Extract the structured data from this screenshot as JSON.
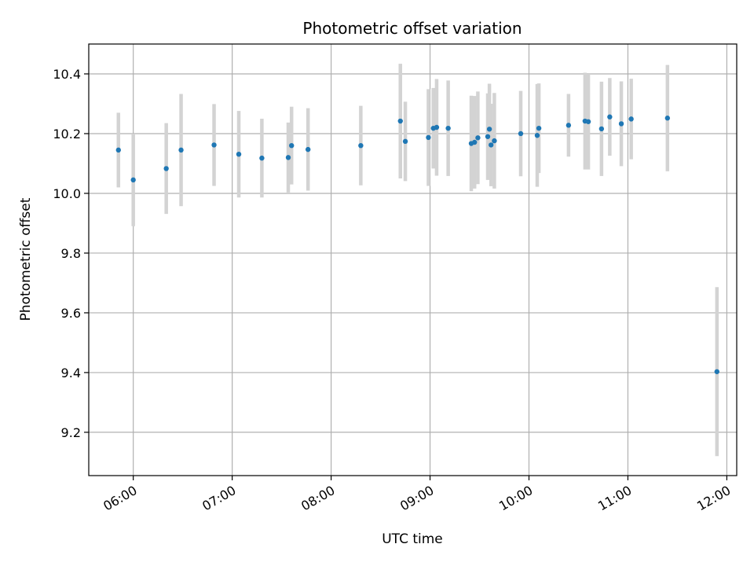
{
  "chart_data": {
    "type": "scatter",
    "title": "Photometric offset variation",
    "xlabel": "UTC time",
    "ylabel": "Photometric offset",
    "xlim": [
      "05:33",
      "12:06"
    ],
    "ylim": [
      9.055,
      10.5
    ],
    "x_ticks": [
      "06:00",
      "07:00",
      "08:00",
      "09:00",
      "10:00",
      "11:00",
      "12:00"
    ],
    "y_ticks": [
      "9.2",
      "9.4",
      "9.6",
      "9.8",
      "10.0",
      "10.2",
      "10.4"
    ],
    "grid": true,
    "colors": {
      "point": "#1f77b4",
      "error_bar": "#d3d3d3",
      "grid": "#b0b0b0"
    },
    "series": [
      {
        "points": [
          {
            "x": "05:51",
            "y": 10.145,
            "yerr": 0.125
          },
          {
            "x": "06:00",
            "y": 10.045,
            "yerr": 0.155
          },
          {
            "x": "06:20",
            "y": 10.083,
            "yerr": 0.152
          },
          {
            "x": "06:29",
            "y": 10.145,
            "yerr": 0.188
          },
          {
            "x": "06:49",
            "y": 10.162,
            "yerr": 0.137
          },
          {
            "x": "07:04",
            "y": 10.131,
            "yerr": 0.145
          },
          {
            "x": "07:18",
            "y": 10.118,
            "yerr": 0.132
          },
          {
            "x": "07:34",
            "y": 10.12,
            "yerr": 0.117
          },
          {
            "x": "07:36",
            "y": 10.16,
            "yerr": 0.13
          },
          {
            "x": "07:46",
            "y": 10.147,
            "yerr": 0.138
          },
          {
            "x": "08:18",
            "y": 10.16,
            "yerr": 0.133
          },
          {
            "x": "08:42",
            "y": 10.242,
            "yerr": 0.192
          },
          {
            "x": "08:45",
            "y": 10.174,
            "yerr": 0.133
          },
          {
            "x": "08:59",
            "y": 10.187,
            "yerr": 0.162
          },
          {
            "x": "09:02",
            "y": 10.218,
            "yerr": 0.135
          },
          {
            "x": "09:04",
            "y": 10.221,
            "yerr": 0.162
          },
          {
            "x": "09:11",
            "y": 10.218,
            "yerr": 0.16
          },
          {
            "x": "09:25",
            "y": 10.167,
            "yerr": 0.16
          },
          {
            "x": "09:27",
            "y": 10.171,
            "yerr": 0.155
          },
          {
            "x": "09:29",
            "y": 10.186,
            "yerr": 0.155
          },
          {
            "x": "09:35",
            "y": 10.19,
            "yerr": 0.145
          },
          {
            "x": "09:36",
            "y": 10.215,
            "yerr": 0.152
          },
          {
            "x": "09:37",
            "y": 10.162,
            "yerr": 0.138
          },
          {
            "x": "09:39",
            "y": 10.176,
            "yerr": 0.16
          },
          {
            "x": "09:55",
            "y": 10.2,
            "yerr": 0.143
          },
          {
            "x": "10:05",
            "y": 10.194,
            "yerr": 0.172
          },
          {
            "x": "10:06",
            "y": 10.218,
            "yerr": 0.15
          },
          {
            "x": "10:24",
            "y": 10.228,
            "yerr": 0.105
          },
          {
            "x": "10:34",
            "y": 10.242,
            "yerr": 0.162
          },
          {
            "x": "10:36",
            "y": 10.24,
            "yerr": 0.16
          },
          {
            "x": "10:44",
            "y": 10.216,
            "yerr": 0.158
          },
          {
            "x": "10:49",
            "y": 10.256,
            "yerr": 0.13
          },
          {
            "x": "10:56",
            "y": 10.233,
            "yerr": 0.142
          },
          {
            "x": "11:02",
            "y": 10.249,
            "yerr": 0.135
          },
          {
            "x": "11:24",
            "y": 10.252,
            "yerr": 0.178
          },
          {
            "x": "11:54",
            "y": 9.403,
            "yerr": 0.283
          }
        ]
      }
    ]
  }
}
